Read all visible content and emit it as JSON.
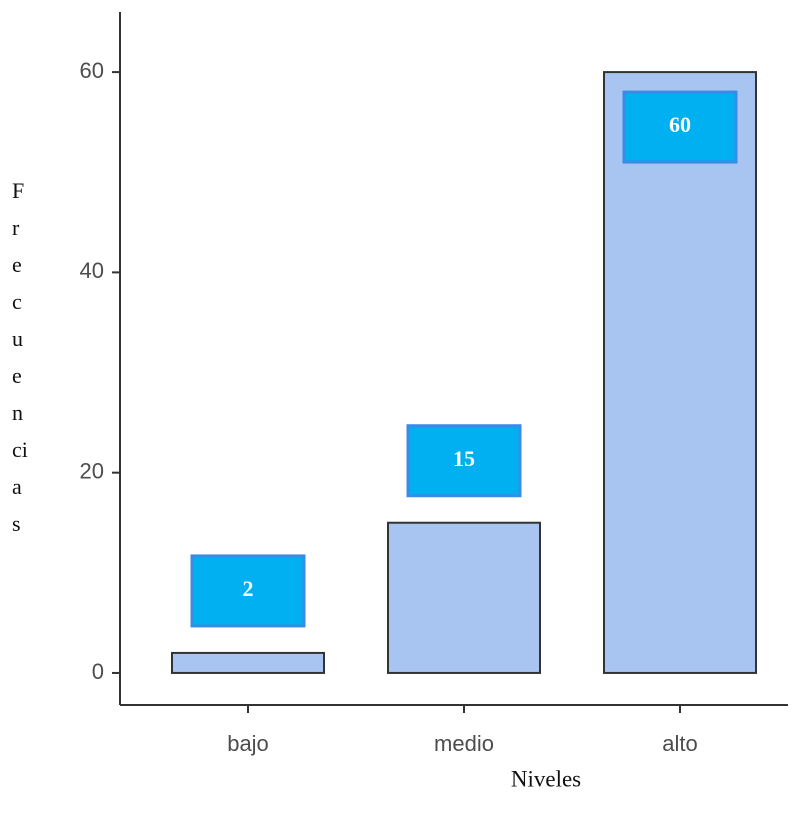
{
  "chart_data": {
    "type": "bar",
    "x_label": "Niveles",
    "y_label": "Frecuencias",
    "categories": [
      "bajo",
      "medio",
      "alto"
    ],
    "values": [
      2,
      15,
      60
    ],
    "color": "#a8c4f0",
    "label_color": "#00b0f0",
    "ylim": [
      -3.2,
      66
    ],
    "yticks": [
      0,
      20,
      40,
      60
    ],
    "grid": false
  }
}
